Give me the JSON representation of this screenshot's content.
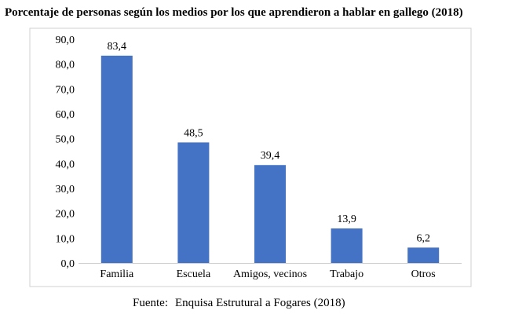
{
  "chart_data": {
    "type": "bar",
    "title": "Porcentaje de personas según los medios por los que aprendieron a hablar en gallego (2018)",
    "categories": [
      "Familia",
      "Escuela",
      "Amigos, vecinos",
      "Trabajo",
      "Otros"
    ],
    "values": [
      83.4,
      48.5,
      39.4,
      13.9,
      6.2
    ],
    "data_labels": [
      "83,4",
      "48,5",
      "39,4",
      "13,9",
      "6,2"
    ],
    "yticks": [
      "0,0",
      "10,0",
      "20,0",
      "30,0",
      "40,0",
      "50,0",
      "60,0",
      "70,0",
      "80,0",
      "90,0"
    ],
    "ylim": [
      0,
      90
    ],
    "xlabel": "",
    "ylabel": "",
    "grid": false,
    "bar_color": "#4472C4",
    "source_label": "Fuente:",
    "source_text": "Enquisa Estrutural a Fogares (2018)"
  }
}
